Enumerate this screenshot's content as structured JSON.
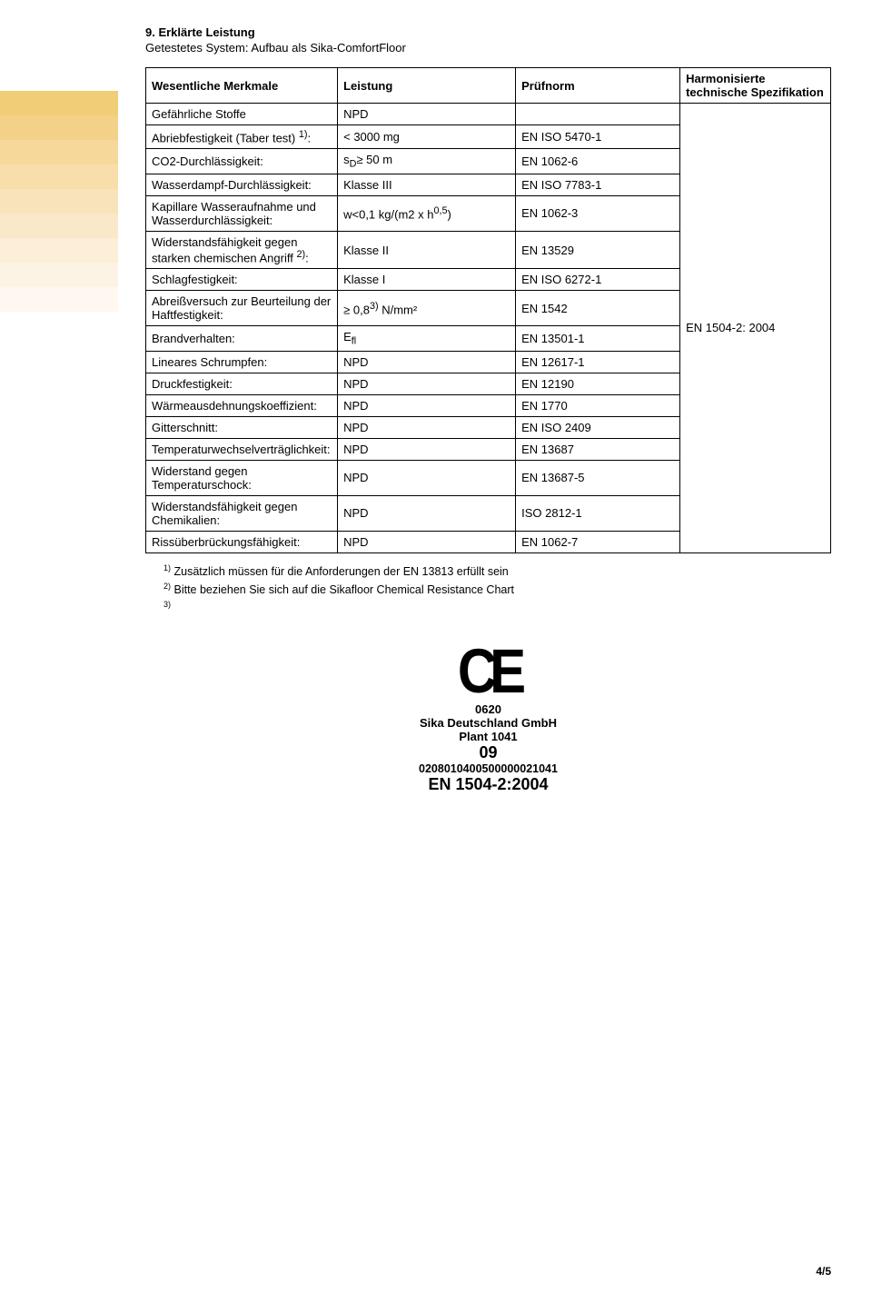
{
  "stripe_colors": [
    "#f1cd76",
    "#f4d189",
    "#f6d89b",
    "#f8deab",
    "#f9e3bb",
    "#fbe8c9",
    "#fceed7",
    "#fdf3e4",
    "#fef8f0"
  ],
  "section": {
    "heading": "9. Erklärte Leistung",
    "subheading": "Getestetes System: Aufbau als Sika-ComfortFloor"
  },
  "table": {
    "headers": [
      "Wesentliche Merkmale",
      "Leistung",
      "Prüfnorm",
      "Harmonisierte technische Spezifikation"
    ],
    "spec_value": "EN 1504-2: 2004",
    "rows": [
      {
        "c0": "Gefährliche Stoffe",
        "c1": "NPD",
        "c2": ""
      },
      {
        "c0": "Abriebfestigkeit (Taber test) 1):",
        "c1": "< 3000 mg",
        "c2": "EN ISO 5470-1"
      },
      {
        "c0": "CO2-Durchlässigkeit:",
        "c1": "sD≥ 50 m",
        "c2": "EN 1062-6"
      },
      {
        "c0": "Wasserdampf-Durchlässigkeit:",
        "c1": "Klasse III",
        "c2": "EN ISO 7783-1"
      },
      {
        "c0": "Kapillare Wasseraufnahme und Wasserdurchlässigkeit:",
        "c1": "w<0,1 kg/(m2 x h0,5)",
        "c2": "EN 1062-3"
      },
      {
        "c0": "Widerstandsfähigkeit gegen starken chemischen Angriff 2):",
        "c1": "Klasse II",
        "c2": "EN 13529"
      },
      {
        "c0": "Schlagfestigkeit:",
        "c1": "Klasse I",
        "c2": "EN ISO 6272-1"
      },
      {
        "c0": "Abreißversuch zur Beurteilung der Haftfestigkeit:",
        "c1": "≥ 0,83) N/mm²",
        "c2": "EN 1542"
      },
      {
        "c0": "Brandverhalten:",
        "c1": "Efl",
        "c2": "EN 13501-1"
      },
      {
        "c0": "Lineares Schrumpfen:",
        "c1": "NPD",
        "c2": "EN 12617-1"
      },
      {
        "c0": "Druckfestigkeit:",
        "c1": "NPD",
        "c2": "EN 12190"
      },
      {
        "c0": "Wärmeausdehnungskoeffizient:",
        "c1": "NPD",
        "c2": "EN 1770"
      },
      {
        "c0": "Gitterschnitt:",
        "c1": "NPD",
        "c2": "EN ISO 2409"
      },
      {
        "c0": "Temperaturwechselverträglichkeit:",
        "c1": "NPD",
        "c2": "EN 13687"
      },
      {
        "c0": "Widerstand gegen Temperaturschock:",
        "c1": "NPD",
        "c2": "EN 13687-5"
      },
      {
        "c0": "Widerstandsfähigkeit gegen Chemikalien:",
        "c1": "NPD",
        "c2": "ISO 2812-1"
      },
      {
        "c0": "Rissüberbrückungsfähigkeit:",
        "c1": "NPD",
        "c2": "EN 1062-7"
      }
    ]
  },
  "footnotes": {
    "f1": "1) Zusätzlich müssen für die Anforderungen der EN 13813 erfüllt sein",
    "f2": "2) Bitte beziehen Sie sich auf die Sikafloor Chemical Resistance Chart",
    "f3": "3)"
  },
  "ce": {
    "mark": "CE",
    "number": "0620",
    "company": "Sika Deutschland GmbH",
    "plant": "Plant 1041",
    "year": "09",
    "long_number": "0208010400500000021041",
    "en": "EN 1504-2:2004"
  },
  "page_number": "4/5"
}
